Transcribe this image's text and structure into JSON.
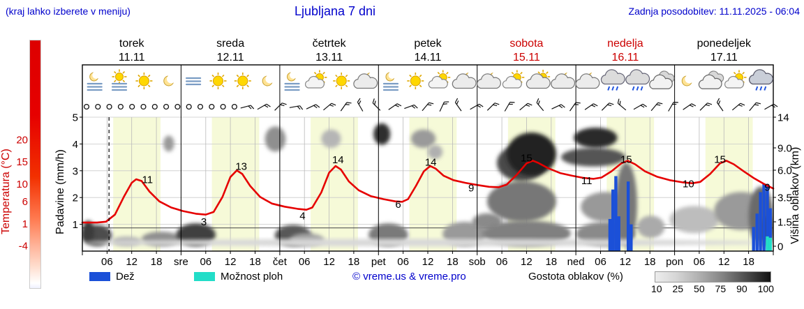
{
  "header": {
    "hint": "(kraj lahko izberete v meniju)",
    "title": "Ljubljana 7 dni",
    "updated": "Zadnja posodobitev: 11.11.2025 - 06:04"
  },
  "colors": {
    "blue": "#0000cc",
    "red": "#cc0000",
    "temp_line": "#e60000",
    "rain": "#1b50d8",
    "shower": "#22ddc8",
    "day_band": "#f6fad8"
  },
  "legend": {
    "rain_label": "Dež",
    "showers_label": "Možnost ploh",
    "copyright": "© vreme.us & vreme.pro",
    "density_label": "Gostota oblakov (%)",
    "density_ticks": [
      "10",
      "25",
      "50",
      "75",
      "90",
      "100"
    ]
  },
  "chart_data": {
    "type": "meteogram",
    "title": "Ljubljana 7 dni",
    "days": [
      {
        "name": "torek",
        "date": "11.11",
        "color": "#000000"
      },
      {
        "name": "sreda",
        "date": "12.11",
        "color": "#000000"
      },
      {
        "name": "četrtek",
        "date": "13.11",
        "color": "#000000"
      },
      {
        "name": "petek",
        "date": "14.11",
        "color": "#000000"
      },
      {
        "name": "sobota",
        "date": "15.11",
        "color": "#cc0000"
      },
      {
        "name": "nedelja",
        "date": "16.11",
        "color": "#cc0000"
      },
      {
        "name": "ponedeljek",
        "date": "17.11",
        "color": "#000000"
      }
    ],
    "x_axis": {
      "hour_ticks": [
        "06",
        "12",
        "18"
      ],
      "day_abbrevs": [
        "sre",
        "čet",
        "pet",
        "sob",
        "ned",
        "pon"
      ]
    },
    "temp_axis": {
      "label": "Temperatura (°C)",
      "ticks": [
        20,
        15,
        10,
        6,
        1,
        -4
      ],
      "range": [
        -4,
        20
      ]
    },
    "precip_axis": {
      "label": "Padavine (mm/h)",
      "ticks": [
        5,
        4,
        3,
        2,
        1
      ]
    },
    "cloud_axis": {
      "label": "Višina oblakov (km)",
      "ticks": [
        "14",
        "9.0",
        "6.0",
        "3.5",
        "1.5",
        "0"
      ],
      "tick_km": [
        14,
        9,
        6,
        3.5,
        1.5,
        0
      ]
    },
    "daylight_hours": [
      7.5,
      19
    ],
    "now_line_day": 0.27,
    "temperature_points": [
      [
        0,
        1.2
      ],
      [
        0.15,
        1.2
      ],
      [
        0.24,
        1.4
      ],
      [
        0.33,
        3
      ],
      [
        0.42,
        7
      ],
      [
        0.5,
        10.2
      ],
      [
        0.545,
        11
      ],
      [
        0.6,
        10.6
      ],
      [
        0.68,
        8.2
      ],
      [
        0.78,
        6
      ],
      [
        0.9,
        4.6
      ],
      [
        1.02,
        3.8
      ],
      [
        1.15,
        3.2
      ],
      [
        1.25,
        3
      ],
      [
        1.33,
        3.6
      ],
      [
        1.42,
        7
      ],
      [
        1.5,
        11.5
      ],
      [
        1.565,
        13
      ],
      [
        1.62,
        12.2
      ],
      [
        1.7,
        9.5
      ],
      [
        1.8,
        7
      ],
      [
        1.92,
        5.5
      ],
      [
        2.05,
        4.8
      ],
      [
        2.18,
        4.3
      ],
      [
        2.27,
        4.1
      ],
      [
        2.33,
        4.6
      ],
      [
        2.42,
        8
      ],
      [
        2.5,
        12.5
      ],
      [
        2.565,
        14
      ],
      [
        2.62,
        13.2
      ],
      [
        2.7,
        10.5
      ],
      [
        2.8,
        8.5
      ],
      [
        2.92,
        7.2
      ],
      [
        3.05,
        6.5
      ],
      [
        3.17,
        6
      ],
      [
        3.24,
        5.9
      ],
      [
        3.3,
        6.5
      ],
      [
        3.38,
        9.5
      ],
      [
        3.46,
        12.8
      ],
      [
        3.525,
        14
      ],
      [
        3.58,
        13.4
      ],
      [
        3.66,
        11.8
      ],
      [
        3.76,
        10.8
      ],
      [
        3.88,
        10.2
      ],
      [
        4,
        9.7
      ],
      [
        4.12,
        9.3
      ],
      [
        4.22,
        9.2
      ],
      [
        4.3,
        9.8
      ],
      [
        4.4,
        12
      ],
      [
        4.5,
        14.6
      ],
      [
        4.565,
        15.2
      ],
      [
        4.62,
        14.7
      ],
      [
        4.72,
        13.5
      ],
      [
        4.84,
        12.4
      ],
      [
        4.96,
        11.8
      ],
      [
        5.08,
        11.3
      ],
      [
        5.18,
        11.1
      ],
      [
        5.26,
        11.4
      ],
      [
        5.36,
        12.8
      ],
      [
        5.46,
        14.6
      ],
      [
        5.525,
        15.2
      ],
      [
        5.6,
        14.4
      ],
      [
        5.7,
        12.8
      ],
      [
        5.82,
        11.6
      ],
      [
        5.95,
        10.8
      ],
      [
        6.08,
        10.3
      ],
      [
        6.18,
        10.1
      ],
      [
        6.26,
        10.4
      ],
      [
        6.36,
        12.2
      ],
      [
        6.46,
        14.6
      ],
      [
        6.525,
        15.2
      ],
      [
        6.6,
        14.4
      ],
      [
        6.7,
        12.8
      ],
      [
        6.8,
        11.3
      ],
      [
        6.9,
        10
      ],
      [
        7,
        8.9
      ]
    ],
    "temp_labels": [
      [
        0.66,
        10.9,
        "11"
      ],
      [
        1.23,
        1.4,
        "3"
      ],
      [
        1.61,
        13.9,
        "13"
      ],
      [
        2.23,
        2.7,
        "4"
      ],
      [
        2.59,
        15.4,
        "14"
      ],
      [
        3.2,
        5.3,
        "6"
      ],
      [
        3.53,
        14.9,
        "14"
      ],
      [
        3.94,
        9,
        "9"
      ],
      [
        4.5,
        15.8,
        "15"
      ],
      [
        5.11,
        10.7,
        "11"
      ],
      [
        5.51,
        15.5,
        "15"
      ],
      [
        6.14,
        10,
        "10"
      ],
      [
        6.46,
        15.5,
        "15"
      ],
      [
        6.94,
        9.2,
        "9"
      ]
    ],
    "precip_bars": [
      [
        5.345,
        1.2,
        "r"
      ],
      [
        5.375,
        2.3,
        "r"
      ],
      [
        5.405,
        2.8,
        "r"
      ],
      [
        5.435,
        1.3,
        "r"
      ],
      [
        5.53,
        2.6,
        "r"
      ],
      [
        5.56,
        1,
        "r"
      ],
      [
        6.8,
        0.9,
        "r"
      ],
      [
        6.835,
        1.4,
        "r"
      ],
      [
        6.87,
        2.2,
        "r"
      ],
      [
        6.905,
        2.5,
        "r"
      ],
      [
        6.94,
        2.5,
        "r"
      ],
      [
        6.97,
        1.6,
        "r"
      ],
      [
        6.94,
        0.55,
        "s"
      ],
      [
        6.97,
        0.5,
        "s"
      ]
    ],
    "clouds": [
      [
        0,
        0.3,
        0,
        1.3,
        "#4e4e4e"
      ],
      [
        0,
        0.12,
        0.2,
        1.6,
        "#3a3a3a"
      ],
      [
        0.3,
        0.6,
        0,
        0.6,
        "#b5b5b5"
      ],
      [
        0.6,
        1,
        0,
        0.9,
        "#8f8f8f"
      ],
      [
        0.95,
        1.35,
        0,
        1.4,
        "#3f3f3f"
      ],
      [
        0.82,
        0.93,
        8.5,
        11,
        "#9a9a9a"
      ],
      [
        1.85,
        2.06,
        8.5,
        12.5,
        "#8f8f8f"
      ],
      [
        1.95,
        2.32,
        0,
        1.3,
        "#585858"
      ],
      [
        2.1,
        2.45,
        0,
        0.8,
        "#a5a5a5"
      ],
      [
        2.42,
        2.62,
        9,
        12,
        "#b5b5b5"
      ],
      [
        2.95,
        3.12,
        9.5,
        13,
        "#2e2e2e"
      ],
      [
        2.9,
        3.3,
        0,
        1.4,
        "#7a7a7a"
      ],
      [
        3.33,
        3.58,
        9,
        12,
        "#9a9a9a"
      ],
      [
        3.5,
        3.65,
        7.5,
        9.5,
        "#b0b0b0"
      ],
      [
        3.65,
        4.1,
        0,
        1.5,
        "#9a9a9a"
      ],
      [
        3.95,
        4.25,
        1,
        2.2,
        "#8a8a8a"
      ],
      [
        4.05,
        4.95,
        0,
        1.6,
        "#808080"
      ],
      [
        4.1,
        4.8,
        1.5,
        5,
        "#777777"
      ],
      [
        4.2,
        4.7,
        5,
        9.5,
        "#4a4a4a"
      ],
      [
        4.3,
        4.8,
        5.5,
        11.5,
        "#222222"
      ],
      [
        4.85,
        5.5,
        6.5,
        9,
        "#555555"
      ],
      [
        4.98,
        5.42,
        9,
        12.3,
        "#2b2b2b"
      ],
      [
        5,
        5.6,
        0,
        1.5,
        "#8a8a8a"
      ],
      [
        5.05,
        5.55,
        1.5,
        4,
        "#999999"
      ],
      [
        5.4,
        5.62,
        0,
        7,
        "#777777"
      ],
      [
        5.62,
        5.9,
        0.5,
        2,
        "#aaaaaa"
      ],
      [
        5.95,
        6.45,
        0.8,
        2.8,
        "#bdbdbd"
      ],
      [
        6.4,
        6.95,
        1,
        4,
        "#9a9a9a"
      ],
      [
        6.75,
        7,
        0,
        4.5,
        "#6a6a6a"
      ],
      [
        6.88,
        7,
        0,
        2,
        "#4a4a4a"
      ],
      [
        0,
        7,
        0,
        0.45,
        "#d8d8d8"
      ]
    ],
    "icons": [
      [
        "fog-moon",
        "fog-sun",
        "sun",
        "moon"
      ],
      [
        "fog",
        "sun",
        "sun",
        "moon"
      ],
      [
        "fog-moon",
        "partly",
        "sun",
        "cloud-moon"
      ],
      [
        "fog-moon",
        "sun",
        "partly",
        "cloud-moon"
      ],
      [
        "cloud-moon",
        "partly",
        "cloud-sun",
        "cloud-moon"
      ],
      [
        "cloud-moon",
        "showers",
        "showers",
        "cloudy"
      ],
      [
        "moon",
        "cloudy",
        "partly",
        "rain"
      ]
    ],
    "wind_calm_count": 14,
    "wind_barb_angles": [
      75,
      60,
      45,
      80,
      65,
      50,
      35,
      -30,
      -45,
      55,
      70,
      40,
      25,
      -35,
      60,
      45,
      30,
      50,
      -40,
      65,
      35,
      55,
      45,
      -50,
      60,
      40,
      30,
      55,
      45,
      -35,
      50,
      40,
      60
    ]
  }
}
